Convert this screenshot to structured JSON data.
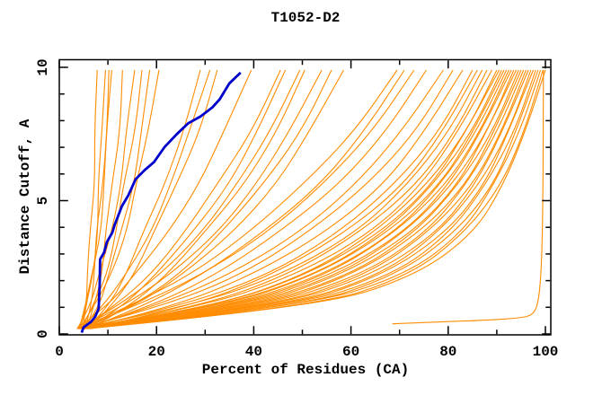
{
  "chart_data": {
    "type": "line",
    "title": "T1052-D2",
    "xlabel": "Percent of Residues (CA)",
    "ylabel": "Distance Cutoff, A",
    "xlim": [
      0,
      100
    ],
    "ylim": [
      0,
      10
    ],
    "x_major_ticks": [
      0,
      20,
      40,
      60,
      80,
      100
    ],
    "x_minor_ticks": [
      10,
      30,
      50,
      70,
      90
    ],
    "y_major_ticks": [
      0,
      5,
      10
    ],
    "y_minor_ticks": [
      1,
      2,
      3,
      4,
      6,
      7,
      8,
      9
    ],
    "grid": "off",
    "legend": "none",
    "colors": {
      "model_curves": "#ff8c00",
      "highlight_curve": "#0000cd",
      "axis": "#000000",
      "background": "#ffffff"
    },
    "cutoff_grid": [
      0.2,
      1.0,
      2.2,
      3.8,
      5.6,
      7.6,
      9.9
    ],
    "model_curves_percent": [
      [
        4.3,
        5.2,
        6.0,
        6.5,
        6.9,
        7.3,
        7.8
      ],
      [
        4.8,
        5.8,
        6.8,
        7.6,
        8.3,
        8.9,
        9.5
      ],
      [
        5.3,
        6.2,
        7.1,
        8.0,
        8.8,
        9.5,
        10.2
      ],
      [
        4.1,
        5.5,
        6.9,
        8.2,
        9.2,
        10.1,
        10.8
      ],
      [
        5.6,
        7.0,
        8.4,
        9.8,
        11.0,
        12.1,
        13.0
      ],
      [
        3.7,
        6.2,
        8.5,
        10.6,
        12.4,
        14.1,
        15.5
      ],
      [
        4.6,
        7.0,
        9.4,
        11.6,
        13.6,
        15.4,
        17.0
      ],
      [
        5.1,
        7.8,
        10.4,
        12.8,
        15.0,
        16.9,
        18.6
      ],
      [
        4.2,
        7.4,
        10.5,
        13.5,
        16.1,
        18.4,
        20.5
      ],
      [
        5.7,
        9.6,
        13.6,
        17.6,
        21.5,
        25.3,
        29.0
      ],
      [
        4.4,
        9.0,
        13.8,
        18.5,
        22.9,
        27.1,
        31.0
      ],
      [
        6.1,
        10.4,
        15.0,
        19.7,
        24.2,
        28.5,
        32.5
      ],
      [
        3.6,
        9.5,
        15.8,
        22.2,
        28.4,
        34.2,
        39.5
      ],
      [
        4.7,
        11.2,
        18.4,
        25.7,
        32.8,
        39.4,
        45.5
      ],
      [
        5.6,
        12.5,
        20.0,
        27.5,
        34.5,
        40.8,
        46.5
      ],
      [
        4.1,
        12.0,
        20.5,
        29.0,
        36.8,
        43.5,
        49.5
      ],
      [
        6.2,
        13.8,
        22.0,
        30.2,
        37.8,
        44.5,
        50.5
      ],
      [
        3.9,
        13.0,
        22.8,
        32.2,
        40.5,
        47.7,
        54.0
      ],
      [
        5.2,
        14.5,
        24.2,
        33.6,
        42.0,
        49.4,
        56.0
      ],
      [
        4.6,
        15.0,
        25.5,
        35.5,
        44.3,
        51.8,
        58.5
      ],
      [
        4.2,
        14.0,
        26.5,
        39.0,
        50.5,
        60.5,
        69.5
      ],
      [
        5.6,
        16.5,
        29.5,
        42.0,
        53.3,
        62.8,
        71.0
      ],
      [
        3.7,
        15.5,
        29.0,
        42.5,
        54.5,
        64.5,
        73.0
      ],
      [
        5.1,
        18.0,
        32.0,
        45.5,
        57.3,
        67.0,
        75.5
      ],
      [
        4.7,
        19.5,
        35.0,
        49.0,
        61.0,
        70.8,
        79.0
      ],
      [
        4.0,
        20.5,
        37.0,
        51.5,
        63.5,
        73.0,
        81.0
      ],
      [
        5.4,
        23.0,
        40.0,
        54.5,
        66.5,
        75.5,
        83.0
      ],
      [
        4.3,
        24.5,
        42.5,
        57.5,
        69.3,
        78.0,
        85.0
      ],
      [
        6.2,
        26.0,
        44.0,
        59.0,
        70.5,
        79.0,
        86.0
      ],
      [
        3.8,
        26.5,
        45.5,
        60.8,
        72.0,
        80.3,
        87.0
      ],
      [
        5.2,
        28.0,
        47.0,
        62.2,
        73.3,
        81.3,
        88.0
      ],
      [
        4.5,
        29.5,
        48.8,
        63.8,
        74.6,
        82.4,
        89.0
      ],
      [
        6.0,
        31.0,
        50.3,
        65.2,
        75.8,
        83.4,
        90.0
      ],
      [
        4.0,
        31.5,
        51.2,
        66.0,
        76.5,
        84.0,
        90.5
      ],
      [
        5.3,
        32.5,
        52.2,
        67.0,
        77.3,
        84.7,
        91.0
      ],
      [
        4.7,
        33.0,
        53.0,
        67.8,
        78.0,
        85.3,
        91.5
      ],
      [
        6.4,
        34.5,
        54.2,
        68.8,
        78.8,
        85.9,
        92.0
      ],
      [
        4.2,
        35.0,
        55.0,
        69.5,
        79.4,
        86.4,
        92.5
      ],
      [
        5.6,
        36.5,
        56.3,
        70.6,
        80.3,
        87.1,
        93.0
      ],
      [
        3.9,
        37.0,
        57.2,
        71.4,
        81.0,
        87.7,
        93.5
      ],
      [
        5.0,
        38.5,
        58.5,
        72.5,
        81.8,
        88.3,
        94.0
      ],
      [
        5.8,
        39.5,
        59.5,
        73.3,
        82.5,
        88.9,
        94.5
      ],
      [
        4.4,
        40.5,
        60.7,
        74.3,
        83.3,
        89.6,
        95.0
      ],
      [
        6.1,
        42.0,
        62.0,
        75.3,
        84.1,
        90.2,
        95.5
      ],
      [
        4.8,
        43.0,
        63.2,
        76.3,
        84.9,
        90.8,
        96.0
      ],
      [
        5.4,
        44.5,
        64.5,
        77.4,
        85.7,
        91.5,
        96.5
      ],
      [
        4.1,
        45.5,
        65.8,
        78.4,
        86.5,
        92.1,
        97.0
      ],
      [
        5.9,
        47.0,
        67.0,
        79.4,
        87.3,
        92.8,
        97.5
      ],
      [
        4.5,
        48.0,
        68.3,
        80.5,
        88.1,
        93.4,
        98.0
      ],
      [
        5.2,
        49.5,
        69.7,
        81.6,
        89.0,
        94.1,
        98.5
      ],
      [
        4.2,
        50.5,
        71.0,
        82.7,
        89.8,
        94.8,
        99.0
      ],
      [
        5.6,
        52.0,
        72.3,
        83.8,
        90.7,
        95.5,
        99.5
      ],
      [
        4.9,
        53.5,
        73.7,
        85.0,
        91.5,
        96.2,
        100.0
      ]
    ],
    "outlier_curve": [
      [
        68.5,
        0.38
      ],
      [
        78.0,
        0.45
      ],
      [
        88.0,
        0.52
      ],
      [
        95.0,
        0.6
      ],
      [
        97.5,
        0.72
      ],
      [
        98.6,
        1.2
      ],
      [
        99.2,
        2.5
      ],
      [
        99.5,
        5.0
      ],
      [
        99.6,
        9.9
      ]
    ],
    "highlight_curve": [
      [
        4.6,
        0.05
      ],
      [
        5.0,
        0.25
      ],
      [
        6.5,
        0.45
      ],
      [
        7.4,
        0.65
      ],
      [
        8.1,
        0.95
      ],
      [
        8.3,
        1.8
      ],
      [
        8.4,
        2.8
      ],
      [
        9.2,
        3.05
      ],
      [
        9.8,
        3.45
      ],
      [
        10.9,
        3.8
      ],
      [
        11.4,
        4.1
      ],
      [
        12.9,
        4.8
      ],
      [
        14.2,
        5.2
      ],
      [
        15.7,
        5.8
      ],
      [
        17.6,
        6.15
      ],
      [
        19.5,
        6.45
      ],
      [
        21.6,
        7.0
      ],
      [
        24.2,
        7.5
      ],
      [
        26.5,
        7.9
      ],
      [
        29.0,
        8.15
      ],
      [
        31.5,
        8.5
      ],
      [
        33.0,
        8.8
      ],
      [
        35.0,
        9.4
      ],
      [
        37.3,
        9.8
      ]
    ]
  }
}
